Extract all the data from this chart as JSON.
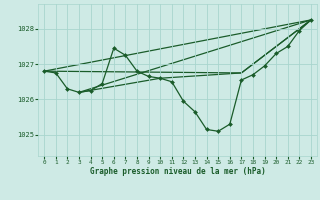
{
  "background_color": "#ceeae5",
  "grid_color": "#a8d5ce",
  "line_color": "#1a5c2a",
  "xlabel": "Graphe pression niveau de la mer (hPa)",
  "xlim": [
    -0.5,
    23.5
  ],
  "ylim": [
    1024.4,
    1028.7
  ],
  "yticks": [
    1025,
    1026,
    1027,
    1028
  ],
  "xticks": [
    0,
    1,
    2,
    3,
    4,
    5,
    6,
    7,
    8,
    9,
    10,
    11,
    12,
    13,
    14,
    15,
    16,
    17,
    18,
    19,
    20,
    21,
    22,
    23
  ],
  "main_series": {
    "x": [
      0,
      1,
      2,
      3,
      4,
      5,
      6,
      7,
      8,
      9,
      10,
      11,
      12,
      13,
      14,
      15,
      16,
      17,
      18,
      19,
      20,
      21,
      22,
      23
    ],
    "y": [
      1026.8,
      1026.75,
      1026.3,
      1026.2,
      1026.25,
      1026.45,
      1027.45,
      1027.25,
      1026.8,
      1026.65,
      1026.6,
      1026.5,
      1025.95,
      1025.65,
      1025.15,
      1025.1,
      1025.3,
      1026.55,
      1026.7,
      1026.95,
      1027.3,
      1027.5,
      1027.95,
      1028.25
    ]
  },
  "trend_lines": [
    {
      "x": [
        0,
        23
      ],
      "y": [
        1026.8,
        1028.25
      ]
    },
    {
      "x": [
        0,
        17,
        23
      ],
      "y": [
        1026.8,
        1026.75,
        1028.25
      ]
    },
    {
      "x": [
        3,
        23
      ],
      "y": [
        1026.2,
        1028.25
      ]
    },
    {
      "x": [
        3,
        10,
        17,
        23
      ],
      "y": [
        1026.2,
        1026.6,
        1026.75,
        1028.25
      ]
    }
  ]
}
